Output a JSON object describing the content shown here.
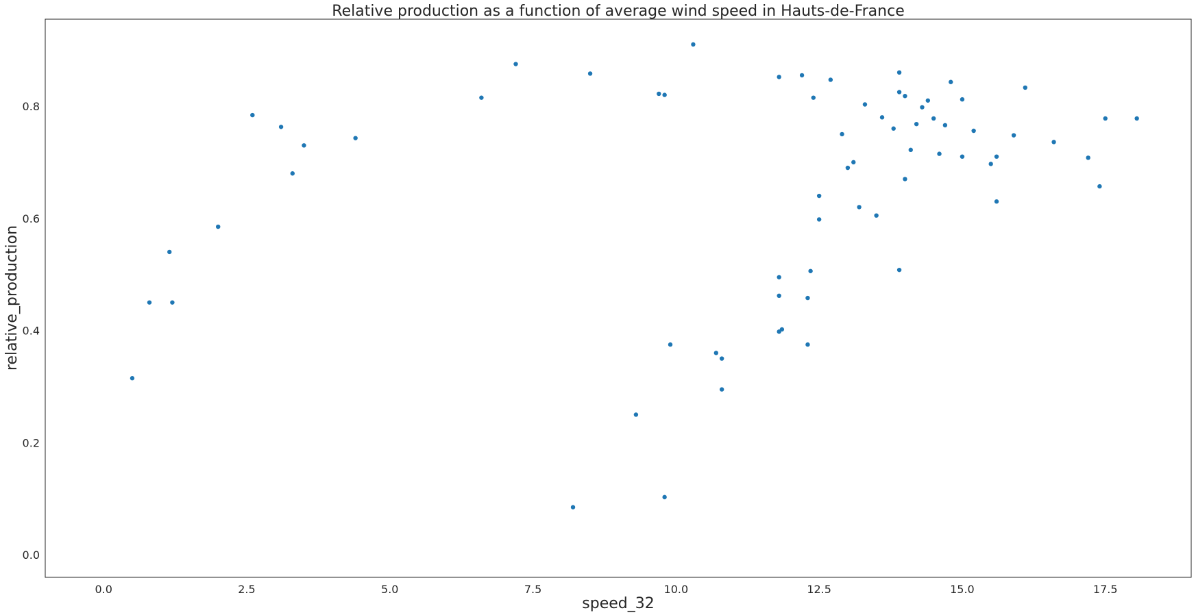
{
  "chart_data": {
    "type": "scatter",
    "title": "Relative production as a function of average wind speed in Hauts-de-France",
    "xlabel": "speed_32",
    "ylabel": "relative_production",
    "xlim": [
      -1.02,
      19.0
    ],
    "ylim": [
      -0.04,
      0.955
    ],
    "xticks": [
      0.0,
      2.5,
      5.0,
      7.5,
      10.0,
      12.5,
      15.0,
      17.5
    ],
    "yticks": [
      0.0,
      0.2,
      0.4,
      0.6,
      0.8
    ],
    "xtick_labels": [
      "0.0",
      "2.5",
      "5.0",
      "7.5",
      "10.0",
      "12.5",
      "15.0",
      "17.5"
    ],
    "ytick_labels": [
      "0.0",
      "0.2",
      "0.4",
      "0.6",
      "0.8"
    ],
    "grid": false,
    "legend": "none",
    "marker_color": "#1f77b4",
    "series": [
      {
        "points": [
          [
            10.3,
            0.91
          ],
          [
            7.2,
            0.875
          ],
          [
            8.5,
            0.858
          ],
          [
            13.9,
            0.86
          ],
          [
            12.2,
            0.855
          ],
          [
            11.8,
            0.852
          ],
          [
            12.7,
            0.847
          ],
          [
            14.8,
            0.843
          ],
          [
            16.1,
            0.833
          ],
          [
            13.9,
            0.825
          ],
          [
            14.0,
            0.818
          ],
          [
            15.0,
            0.812
          ],
          [
            14.4,
            0.81
          ],
          [
            12.4,
            0.815
          ],
          [
            6.6,
            0.815
          ],
          [
            9.7,
            0.822
          ],
          [
            9.8,
            0.82
          ],
          [
            13.3,
            0.803
          ],
          [
            17.5,
            0.778
          ],
          [
            18.05,
            0.778
          ],
          [
            16.6,
            0.736
          ],
          [
            17.2,
            0.708
          ],
          [
            17.4,
            0.657
          ],
          [
            15.9,
            0.748
          ],
          [
            15.6,
            0.71
          ],
          [
            15.5,
            0.697
          ],
          [
            15.6,
            0.63
          ],
          [
            15.2,
            0.756
          ],
          [
            15.0,
            0.71
          ],
          [
            14.7,
            0.766
          ],
          [
            14.5,
            0.778
          ],
          [
            14.3,
            0.798
          ],
          [
            14.2,
            0.768
          ],
          [
            14.1,
            0.722
          ],
          [
            14.0,
            0.67
          ],
          [
            13.9,
            0.508
          ],
          [
            12.3,
            0.375
          ],
          [
            12.3,
            0.458
          ],
          [
            12.35,
            0.506
          ],
          [
            11.8,
            0.398
          ],
          [
            11.85,
            0.402
          ],
          [
            11.8,
            0.462
          ],
          [
            11.8,
            0.495
          ],
          [
            9.8,
            0.103
          ],
          [
            8.2,
            0.085
          ],
          [
            10.8,
            0.295
          ],
          [
            10.8,
            0.35
          ],
          [
            10.7,
            0.36
          ],
          [
            9.3,
            0.25
          ],
          [
            9.9,
            0.375
          ],
          [
            2.6,
            0.784
          ],
          [
            3.1,
            0.763
          ],
          [
            3.5,
            0.73
          ],
          [
            4.4,
            0.743
          ],
          [
            1.15,
            0.54
          ],
          [
            3.3,
            0.68
          ],
          [
            2.0,
            0.585
          ],
          [
            0.5,
            0.315
          ],
          [
            0.8,
            0.45
          ],
          [
            1.2,
            0.45
          ],
          [
            13.1,
            0.7
          ],
          [
            13.2,
            0.62
          ],
          [
            13.5,
            0.605
          ],
          [
            13.8,
            0.76
          ],
          [
            13.6,
            0.78
          ],
          [
            14.6,
            0.715
          ],
          [
            12.9,
            0.75
          ],
          [
            13.0,
            0.69
          ],
          [
            12.5,
            0.598
          ],
          [
            12.5,
            0.64
          ]
        ]
      }
    ]
  }
}
